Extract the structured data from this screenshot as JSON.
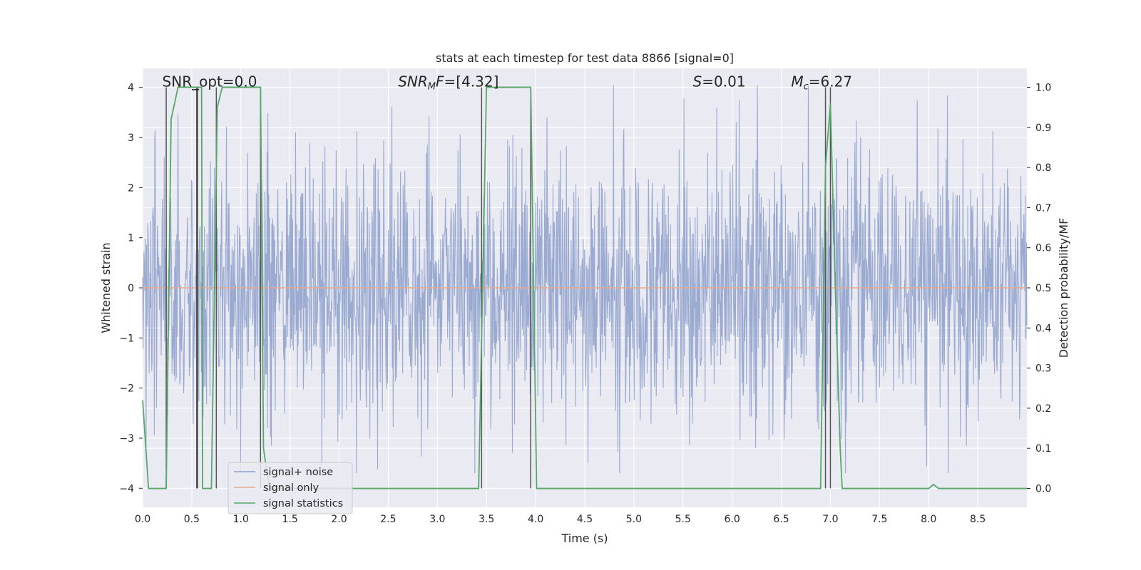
{
  "chart_data": {
    "type": "line",
    "title": "stats at each timestep for test data 8866 [signal=0]",
    "xlabel": "Time (s)",
    "ylabel": "Whitened strain",
    "ylabel_right": "Detection probability/MF",
    "xlim": [
      0.0,
      9.0
    ],
    "ylim": [
      -4.38,
      4.38
    ],
    "ylim_right": [
      -0.047,
      1.047
    ],
    "x_ticks": [
      0.0,
      0.5,
      1.0,
      1.5,
      2.0,
      2.5,
      3.0,
      3.5,
      4.0,
      4.5,
      5.0,
      5.5,
      6.0,
      6.5,
      7.0,
      7.5,
      8.0,
      8.5
    ],
    "x_tick_labels": [
      "0.0",
      "0.5",
      "1.0",
      "1.5",
      "2.0",
      "2.5",
      "3.0",
      "3.5",
      "4.0",
      "4.5",
      "5.0",
      "5.5",
      "6.0",
      "6.5",
      "7.0",
      "7.5",
      "8.0",
      "8.5"
    ],
    "y_ticks": [
      4,
      3,
      2,
      1,
      0,
      -1,
      -2,
      -3,
      -4
    ],
    "y_tick_labels": [
      "4",
      "3",
      "2",
      "1",
      "0",
      "−1",
      "−2",
      "−3",
      "−4"
    ],
    "y_right_ticks": [
      1.0,
      0.9,
      0.8,
      0.7,
      0.6,
      0.5,
      0.4,
      0.3,
      0.2,
      0.1,
      0.0
    ],
    "y_right_tick_labels": [
      "1.0",
      "0.9",
      "0.8",
      "0.7",
      "0.6",
      "0.5",
      "0.4",
      "0.3",
      "0.2",
      "0.1",
      "0.0"
    ],
    "annotations": [
      {
        "name": "snr-opt",
        "text": "SNR_opt=0.0",
        "x": 0.2
      },
      {
        "name": "snr-mf",
        "text": "SNR_MF=[4.32]",
        "base": "SNR",
        "sub": "M",
        "rest": "F=[4.32]",
        "x": 2.6
      },
      {
        "name": "spin",
        "text": "S=0.01",
        "base": "S",
        "rest": "=0.01",
        "x": 5.6
      },
      {
        "name": "chirp-mass",
        "text": "M_c=6.27",
        "base": "M",
        "sub": "c",
        "rest": "=6.27",
        "x": 6.6
      }
    ],
    "annotation_y": 4.0,
    "series": [
      {
        "name": "signal+ noise",
        "color": "#8c9fca",
        "noise_sigma": 1.0,
        "samples": 2048,
        "duration": 9.0
      },
      {
        "name": "signal only",
        "color": "#e8a98e",
        "x": [
          0.0,
          9.0
        ],
        "y": [
          0.0,
          0.0
        ]
      },
      {
        "name": "signal statistics",
        "color": "#55a868",
        "axis": "right",
        "x": [
          0.0,
          0.06,
          0.24,
          0.29,
          0.36,
          0.4,
          0.6,
          0.61,
          0.7,
          0.76,
          0.81,
          1.2,
          1.23,
          1.29,
          3.42,
          3.5,
          3.95,
          4.01,
          6.9,
          6.95,
          7.0,
          7.05,
          7.1,
          7.12,
          8.0,
          8.05,
          8.1,
          8.2,
          9.0
        ],
        "y": [
          0.22,
          0.0,
          0.0,
          0.92,
          1.0,
          1.0,
          1.0,
          0.0,
          0.0,
          0.95,
          1.0,
          1.0,
          0.1,
          0.0,
          0.0,
          1.0,
          1.0,
          0.0,
          0.0,
          0.8,
          0.96,
          0.5,
          0.1,
          0.0,
          0.0,
          0.01,
          0.0,
          0.0,
          0.0
        ]
      }
    ],
    "vertical_lines": [
      0.24,
      0.55,
      0.56,
      0.75,
      1.2,
      3.45,
      3.95,
      6.95,
      7.0
    ],
    "vertical_lines_color": "#555555",
    "legend_location": "lower-left",
    "grid": true,
    "background": "#eaeaf2"
  }
}
